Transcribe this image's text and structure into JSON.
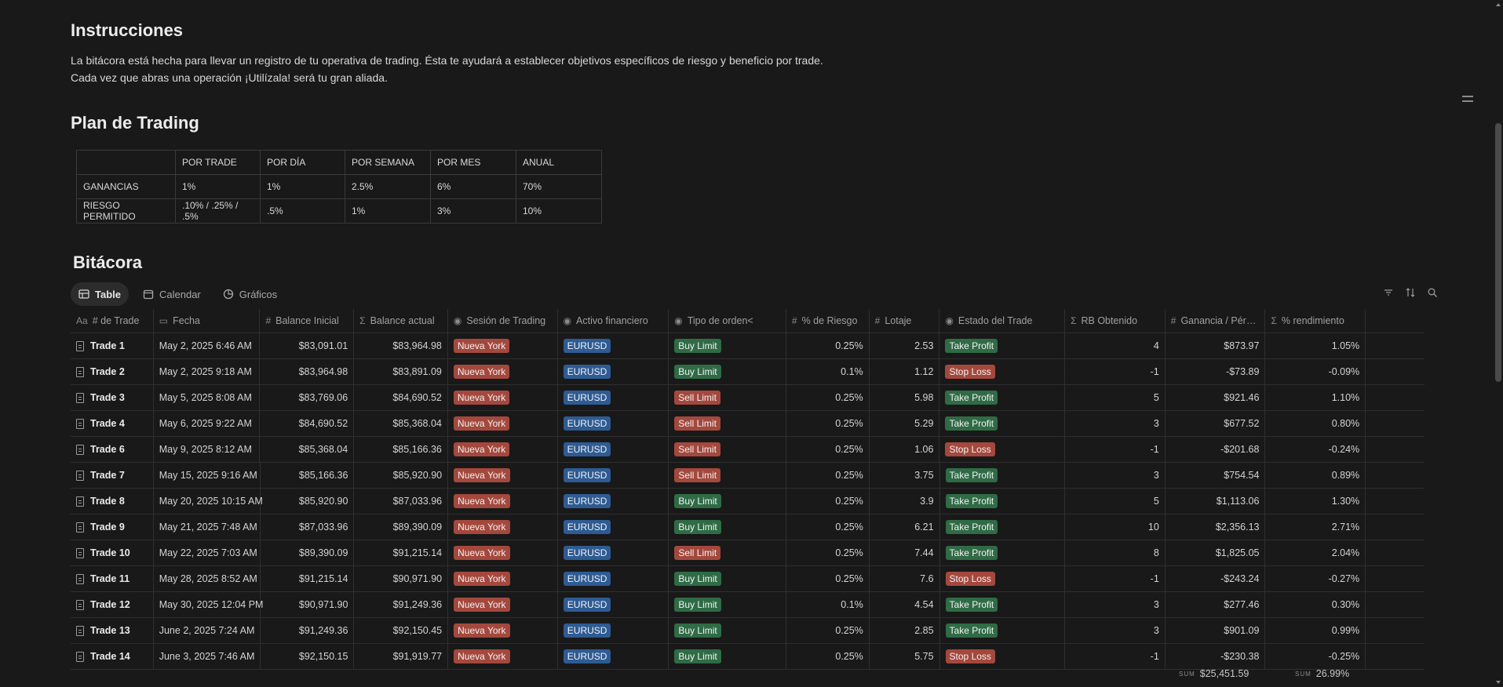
{
  "instructions": {
    "heading": "Instrucciones",
    "line1": "La bitácora está hecha para llevar un registro de tu operativa de trading. Ésta te ayudará a establecer objetivos específicos de riesgo y beneficio por trade.",
    "line2": "Cada vez que abras una operación ¡Utilízala! será tu gran aliada."
  },
  "plan": {
    "heading": "Plan de Trading",
    "headers": [
      "",
      "POR TRADE",
      "POR DÍA",
      "POR SEMANA",
      "POR MES",
      "ANUAL"
    ],
    "rows": [
      [
        "GANANCIAS",
        "1%",
        "1%",
        "2.5%",
        "6%",
        "70%"
      ],
      [
        "RIESGO PERMITIDO",
        ".10% / .25% / .5%",
        ".5%",
        "1%",
        "3%",
        "10%"
      ]
    ]
  },
  "log": {
    "heading": "Bitácora",
    "views": [
      "Table",
      "Calendar",
      "Gráficos"
    ],
    "columns": [
      "# de Trade",
      "Fecha",
      "Balance Inicial",
      "Balance actual",
      "Sesión de Trading",
      "Activo financiero",
      "Tipo de orden<",
      "% de Riesgo",
      "Lotaje",
      "Estado del Trade",
      "RB Obtenido",
      "Ganancia / Pér…",
      "% rendimiento"
    ],
    "column_icons": [
      "text-icon",
      "calendar-icon",
      "hash-icon",
      "sigma-icon",
      "select-icon",
      "select-icon",
      "select-icon",
      "hash-icon",
      "hash-icon",
      "select-icon",
      "sigma-icon",
      "hash-icon",
      "sigma-icon"
    ],
    "rows": [
      {
        "trade": "Trade 1",
        "fecha": "May 2, 2025 6:46 AM",
        "bal_ini": "$83,091.01",
        "bal_act": "$83,964.98",
        "sesion": "Nueva York",
        "activo": "EURUSD",
        "orden": "Buy Limit",
        "riesgo": "0.25%",
        "lotaje": "2.53",
        "estado": "Take Profit",
        "rb": "4",
        "ganancia": "$873.97",
        "rend": "1.05%"
      },
      {
        "trade": "Trade 2",
        "fecha": "May 2, 2025 9:18 AM",
        "bal_ini": "$83,964.98",
        "bal_act": "$83,891.09",
        "sesion": "Nueva York",
        "activo": "EURUSD",
        "orden": "Buy Limit",
        "riesgo": "0.1%",
        "lotaje": "1.12",
        "estado": "Stop Loss",
        "rb": "-1",
        "ganancia": "-$73.89",
        "rend": "-0.09%"
      },
      {
        "trade": "Trade 3",
        "fecha": "May 5, 2025 8:08 AM",
        "bal_ini": "$83,769.06",
        "bal_act": "$84,690.52",
        "sesion": "Nueva York",
        "activo": "EURUSD",
        "orden": "Sell Limit",
        "riesgo": "0.25%",
        "lotaje": "5.98",
        "estado": "Take Profit",
        "rb": "5",
        "ganancia": "$921.46",
        "rend": "1.10%"
      },
      {
        "trade": "Trade 4",
        "fecha": "May 6, 2025 9:22 AM",
        "bal_ini": "$84,690.52",
        "bal_act": "$85,368.04",
        "sesion": "Nueva York",
        "activo": "EURUSD",
        "orden": "Sell Limit",
        "riesgo": "0.25%",
        "lotaje": "5.29",
        "estado": "Take Profit",
        "rb": "3",
        "ganancia": "$677.52",
        "rend": "0.80%"
      },
      {
        "trade": "Trade 6",
        "fecha": "May 9, 2025 8:12 AM",
        "bal_ini": "$85,368.04",
        "bal_act": "$85,166.36",
        "sesion": "Nueva York",
        "activo": "EURUSD",
        "orden": "Sell Limit",
        "riesgo": "0.25%",
        "lotaje": "1.06",
        "estado": "Stop Loss",
        "rb": "-1",
        "ganancia": "-$201.68",
        "rend": "-0.24%"
      },
      {
        "trade": "Trade 7",
        "fecha": "May 15, 2025 9:16 AM",
        "bal_ini": "$85,166.36",
        "bal_act": "$85,920.90",
        "sesion": "Nueva York",
        "activo": "EURUSD",
        "orden": "Sell Limit",
        "riesgo": "0.25%",
        "lotaje": "3.75",
        "estado": "Take Profit",
        "rb": "3",
        "ganancia": "$754.54",
        "rend": "0.89%"
      },
      {
        "trade": "Trade 8",
        "fecha": "May 20, 2025 10:15 AM",
        "bal_ini": "$85,920.90",
        "bal_act": "$87,033.96",
        "sesion": "Nueva York",
        "activo": "EURUSD",
        "orden": "Buy Limit",
        "riesgo": "0.25%",
        "lotaje": "3.9",
        "estado": "Take Profit",
        "rb": "5",
        "ganancia": "$1,113.06",
        "rend": "1.30%"
      },
      {
        "trade": "Trade 9",
        "fecha": "May 21, 2025 7:48 AM",
        "bal_ini": "$87,033.96",
        "bal_act": "$89,390.09",
        "sesion": "Nueva York",
        "activo": "EURUSD",
        "orden": "Buy Limit",
        "riesgo": "0.25%",
        "lotaje": "6.21",
        "estado": "Take Profit",
        "rb": "10",
        "ganancia": "$2,356.13",
        "rend": "2.71%"
      },
      {
        "trade": "Trade 10",
        "fecha": "May 22, 2025 7:03 AM",
        "bal_ini": "$89,390.09",
        "bal_act": "$91,215.14",
        "sesion": "Nueva York",
        "activo": "EURUSD",
        "orden": "Sell Limit",
        "riesgo": "0.25%",
        "lotaje": "7.44",
        "estado": "Take Profit",
        "rb": "8",
        "ganancia": "$1,825.05",
        "rend": "2.04%"
      },
      {
        "trade": "Trade 11",
        "fecha": "May 28, 2025 8:52 AM",
        "bal_ini": "$91,215.14",
        "bal_act": "$90,971.90",
        "sesion": "Nueva York",
        "activo": "EURUSD",
        "orden": "Buy Limit",
        "riesgo": "0.25%",
        "lotaje": "7.6",
        "estado": "Stop Loss",
        "rb": "-1",
        "ganancia": "-$243.24",
        "rend": "-0.27%"
      },
      {
        "trade": "Trade 12",
        "fecha": "May 30, 2025 12:04 PM",
        "bal_ini": "$90,971.90",
        "bal_act": "$91,249.36",
        "sesion": "Nueva York",
        "activo": "EURUSD",
        "orden": "Buy Limit",
        "riesgo": "0.1%",
        "lotaje": "4.54",
        "estado": "Take Profit",
        "rb": "3",
        "ganancia": "$277.46",
        "rend": "0.30%"
      },
      {
        "trade": "Trade 13",
        "fecha": "June 2, 2025 7:24 AM",
        "bal_ini": "$91,249.36",
        "bal_act": "$92,150.45",
        "sesion": "Nueva York",
        "activo": "EURUSD",
        "orden": "Buy Limit",
        "riesgo": "0.25%",
        "lotaje": "2.85",
        "estado": "Take Profit",
        "rb": "3",
        "ganancia": "$901.09",
        "rend": "0.99%"
      },
      {
        "trade": "Trade 14",
        "fecha": "June 3, 2025 7:46 AM",
        "bal_ini": "$92,150.15",
        "bal_act": "$91,919.77",
        "sesion": "Nueva York",
        "activo": "EURUSD",
        "orden": "Buy Limit",
        "riesgo": "0.25%",
        "lotaje": "5.75",
        "estado": "Stop Loss",
        "rb": "-1",
        "ganancia": "-$230.38",
        "rend": "-0.25%"
      }
    ],
    "sum_label": "SUM",
    "sum_ganancia": "$25,451.59",
    "sum_rend": "26.99%"
  },
  "colors": {
    "nueva_york": "#a4483d",
    "eurusd": "#2e5b93",
    "buy_limit": "#2f6b45",
    "sell_limit": "#a4483d",
    "take_profit": "#2f6b45",
    "stop_loss": "#a4483d"
  }
}
